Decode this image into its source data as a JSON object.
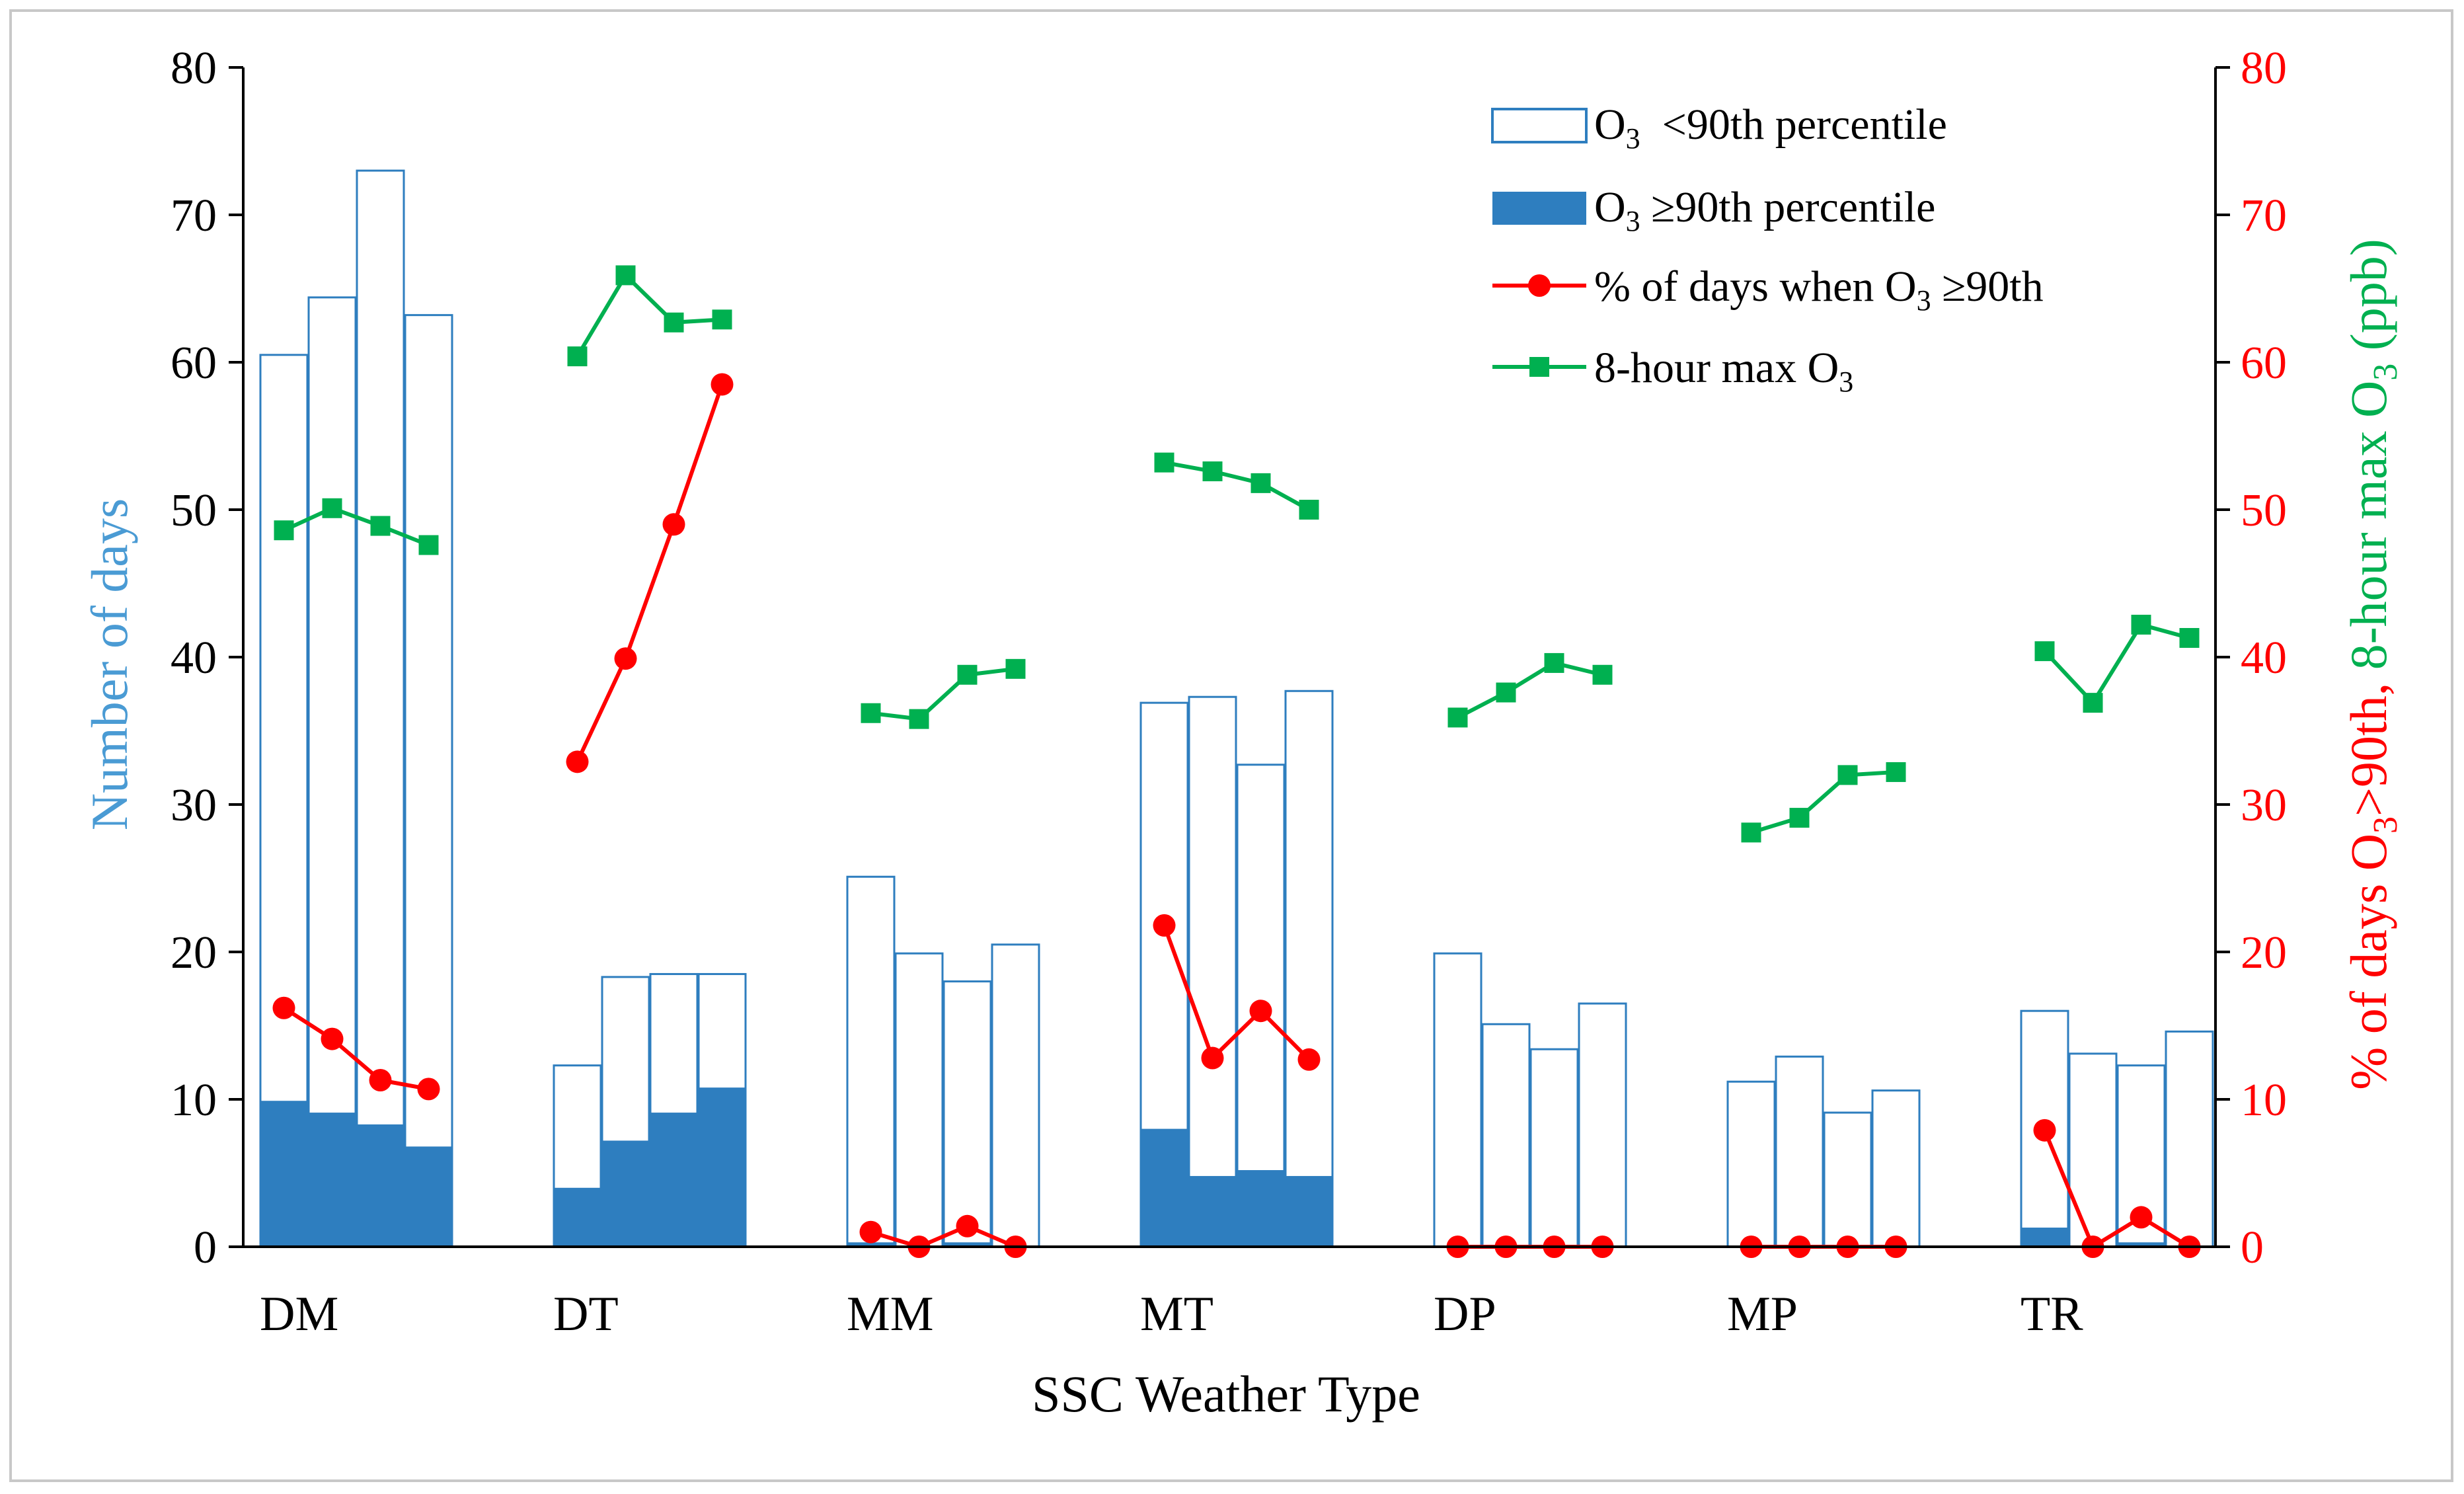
{
  "chart_data": {
    "type": "bar",
    "xlabel": "SSC Weather Type",
    "ylabel_left": "Number of days",
    "ylabel_right_part1": "% of days O",
    "ylabel_right_part1_sub": "3",
    "ylabel_right_part2": ">90th, ",
    "ylabel_right_part3": "8-hour max O",
    "ylabel_right_part3_sub": "3",
    "ylabel_right_part4": " (ppb)",
    "ylim_left": [
      0,
      80
    ],
    "ylim_right": [
      0,
      80
    ],
    "yticks_left": [
      "0",
      "10",
      "20",
      "30",
      "40",
      "50",
      "60",
      "70",
      "80"
    ],
    "yticks_right": [
      "0",
      "10",
      "20",
      "30",
      "40",
      "50",
      "60",
      "70",
      "80"
    ],
    "categories": [
      "DM",
      "DT",
      "MM",
      "MT",
      "DP",
      "MP",
      "TR"
    ],
    "bars_per_category": 4,
    "series": [
      {
        "name": "O3 <90th percentile",
        "legend_pre": "O",
        "legend_sub": "3",
        "legend_post": "  <90th percentile",
        "kind": "bar-total",
        "values": [
          [
            60.5,
            64.4,
            73.0,
            63.2
          ],
          [
            12.3,
            18.3,
            18.5,
            18.5
          ],
          [
            25.1,
            19.9,
            18.0,
            20.5
          ],
          [
            36.9,
            37.3,
            32.7,
            37.7
          ],
          [
            19.9,
            15.1,
            13.4,
            16.5
          ],
          [
            11.2,
            12.9,
            9.1,
            10.6
          ],
          [
            16.0,
            13.1,
            12.3,
            14.6
          ]
        ]
      },
      {
        "name": "O3 ≥90th percentile",
        "legend_pre": "O",
        "legend_sub": "3",
        "legend_post": " ≥90th percentile",
        "kind": "bar-high",
        "values": [
          [
            9.9,
            9.1,
            8.3,
            6.8
          ],
          [
            4.0,
            7.2,
            9.1,
            10.8
          ],
          [
            0.3,
            0,
            0.3,
            0
          ],
          [
            8.0,
            4.8,
            5.2,
            4.8
          ],
          [
            0,
            0,
            0,
            0
          ],
          [
            0,
            0,
            0,
            0
          ],
          [
            1.3,
            0,
            0.3,
            0
          ]
        ]
      },
      {
        "name": "% of days when O3 ≥90th",
        "legend_pre": "% of days when O",
        "legend_sub": "3",
        "legend_post": " ≥90th",
        "kind": "line-red",
        "values": [
          [
            16.2,
            14.1,
            11.3,
            10.7
          ],
          [
            32.9,
            39.9,
            49.0,
            58.5
          ],
          [
            1.0,
            0,
            1.4,
            0
          ],
          [
            21.8,
            12.8,
            16.0,
            12.7
          ],
          [
            0,
            0,
            0,
            0
          ],
          [
            0,
            0,
            0,
            0
          ],
          [
            7.9,
            0,
            2.0,
            0
          ]
        ]
      },
      {
        "name": "8-hour max O3",
        "legend_pre": "8-hour max O",
        "legend_sub": "3",
        "legend_post": "",
        "kind": "line-green",
        "values": [
          [
            48.6,
            50.1,
            48.9,
            47.6
          ],
          [
            60.4,
            65.9,
            62.7,
            62.9
          ],
          [
            36.2,
            35.8,
            38.8,
            39.2
          ],
          [
            53.2,
            52.6,
            51.8,
            50.0
          ],
          [
            35.9,
            37.6,
            39.6,
            38.8
          ],
          [
            28.1,
            29.1,
            32.0,
            32.2
          ],
          [
            40.4,
            36.9,
            42.2,
            41.3
          ]
        ]
      }
    ]
  },
  "colors": {
    "bar_blue": "#2e7ebf",
    "red": "#ff0000",
    "green": "#00b050",
    "left_axis_label": "#4a9bd4",
    "axis": "#000000",
    "frame": "#c8c8c8"
  }
}
